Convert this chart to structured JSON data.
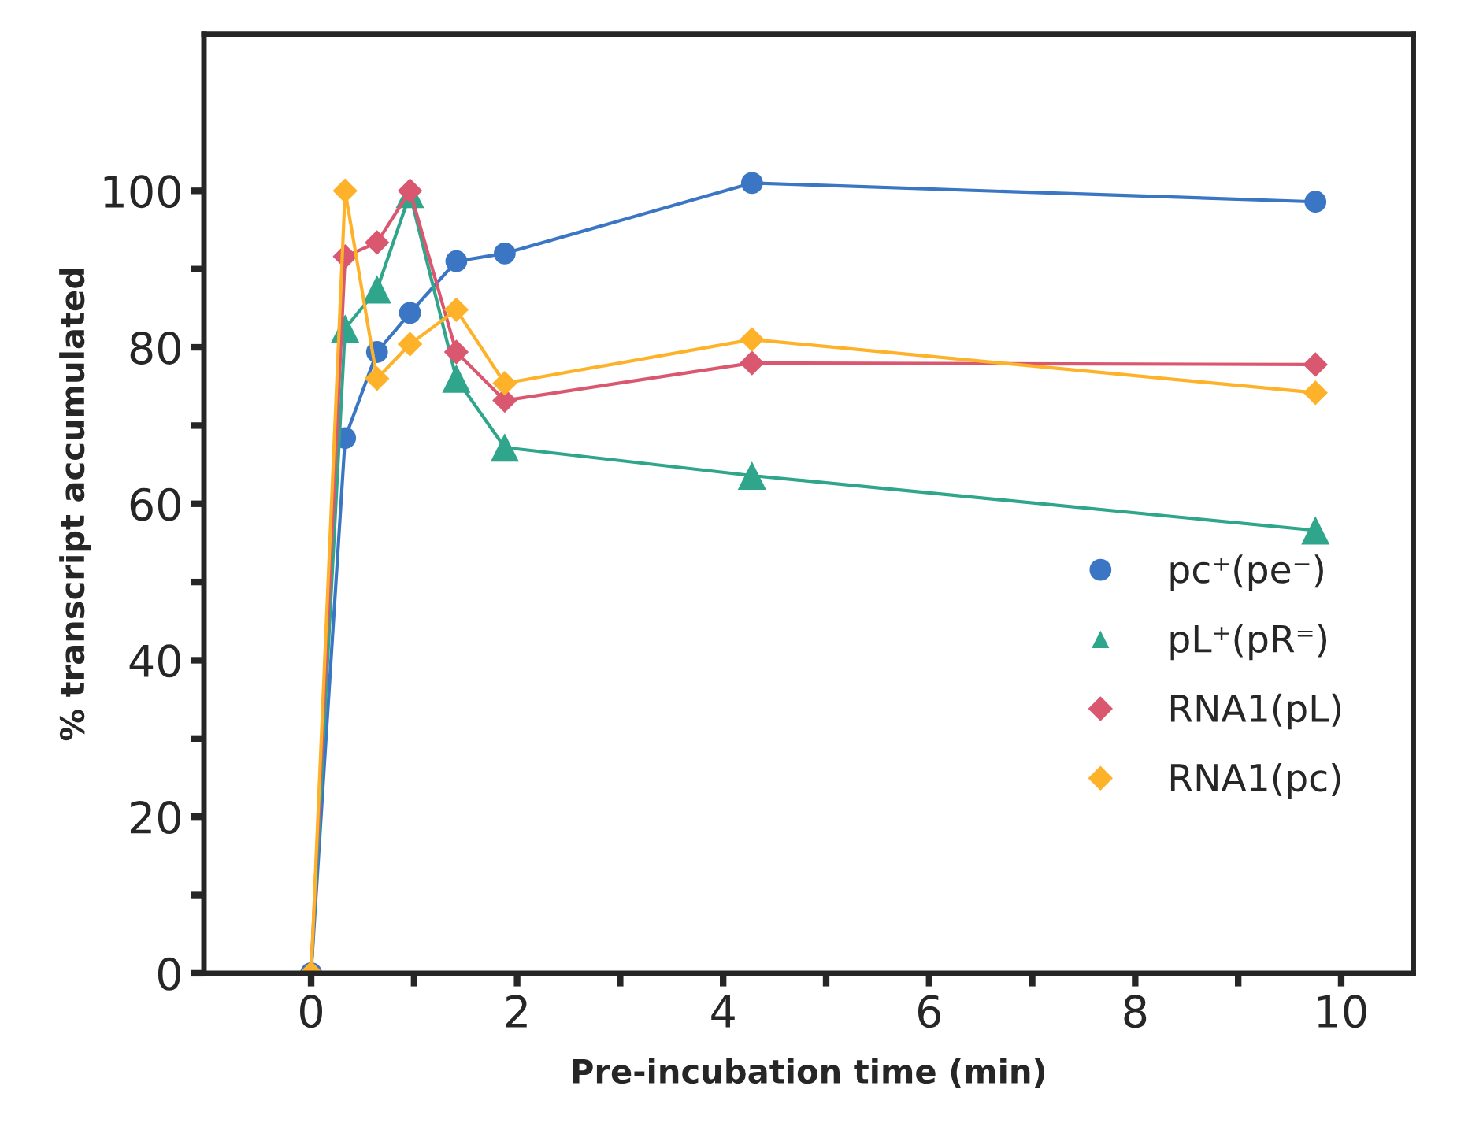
{
  "chart_data": {
    "type": "line",
    "xlabel": "Pre-incubation time (min)",
    "ylabel": "% transcript accumulated",
    "xlim": [
      -1.04,
      10.7
    ],
    "ylim": [
      0,
      120
    ],
    "xticks": [
      0,
      {
        "value": 1,
        "label": null
      },
      2,
      {
        "value": 3,
        "label": null
      },
      4,
      {
        "value": 5,
        "label": null
      },
      6,
      {
        "value": 7,
        "label": null
      },
      8,
      {
        "value": 9,
        "label": null
      },
      10
    ],
    "yticks": [
      0,
      {
        "value": 10,
        "label": null
      },
      20,
      {
        "value": 30,
        "label": null
      },
      40,
      {
        "value": 50,
        "label": null
      },
      60,
      {
        "value": 70,
        "label": null
      },
      80,
      {
        "value": 90,
        "label": null
      },
      100
    ],
    "grid": false,
    "legend": "bottom right",
    "line_style": "solid",
    "x": [
      0,
      0.33,
      0.64,
      0.96,
      1.41,
      1.88,
      4.28,
      9.75
    ],
    "series": [
      {
        "name": "pc⁺(pe⁻)",
        "color": "#3a76c4",
        "marker": "circle",
        "values": [
          0,
          68.4,
          79.4,
          84.4,
          91,
          92,
          101,
          98.6
        ]
      },
      {
        "name": "pL⁺(pR⁼)",
        "color": "#2fa58c",
        "marker": "triangle",
        "values": [
          0,
          82.4,
          87.4,
          99.6,
          76,
          67.2,
          63.6,
          56.6
        ]
      },
      {
        "name": "RNA1(pL)",
        "color": "#d9576f",
        "marker": "diamond",
        "values": [
          0,
          91.6,
          93.4,
          100,
          79.4,
          73.2,
          78,
          77.8
        ]
      },
      {
        "name": "RNA1(pc)",
        "color": "#fdb22a",
        "marker": "diamond",
        "values": [
          0,
          100,
          76,
          80.4,
          84.8,
          75.4,
          81,
          74.2
        ]
      }
    ]
  }
}
